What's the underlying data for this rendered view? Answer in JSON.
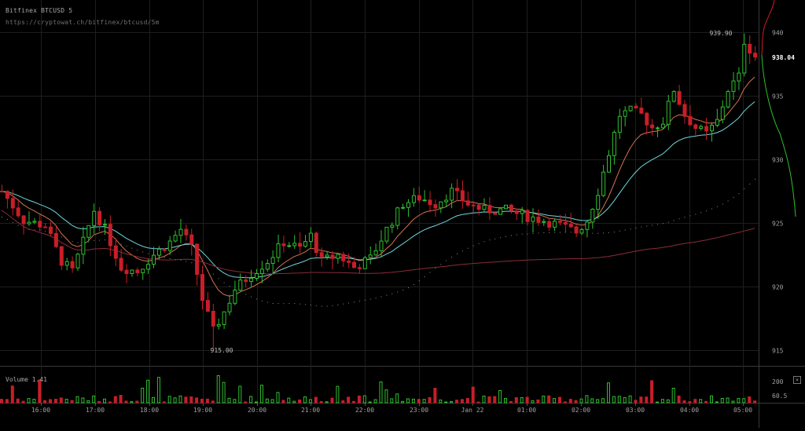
{
  "header": {
    "title": "Bitfinex BTCUSD 5",
    "url": "https://cryptowat.ch/bitfinex/btcusd/5m"
  },
  "colors": {
    "background": "#000000",
    "grid": "#1e1e1e",
    "up": "#2fbf2f",
    "down": "#c81e28",
    "ema_fast": "#d2734f",
    "ema_slow": "#6fd6dc",
    "sma_long": "#8a2d38",
    "dots": "#8a8a8a",
    "depth_bid": "#2fbf2f",
    "depth_ask": "#c81e28"
  },
  "chart_data": {
    "type": "candlestick",
    "x_ticks": [
      "16:00",
      "17:00",
      "18:00",
      "19:00",
      "20:00",
      "21:00",
      "22:00",
      "23:00",
      "Jan 22",
      "01:00",
      "02:00",
      "03:00",
      "04:00",
      "05:00"
    ],
    "y_ticks": [
      940,
      935,
      930,
      925,
      920,
      915
    ],
    "ylim": [
      914.5,
      942.5
    ],
    "last_price": "938.04",
    "high_label": "939.90",
    "low_label": "915.00",
    "volume": {
      "label": "Volume 1.41",
      "y_ticks": [
        "200",
        "60.5"
      ],
      "close_label": "×"
    },
    "ohlc_preview": [
      [
        927.8,
        928.1,
        924.8,
        925.2
      ],
      [
        925.2,
        926.3,
        924.0,
        924.6
      ],
      [
        924.6,
        925.5,
        923.9,
        925.0
      ],
      [
        915.9,
        917.4,
        915.0,
        916.8
      ],
      [
        934.8,
        935.7,
        932.9,
        933.5
      ],
      [
        937.1,
        939.9,
        936.5,
        939.3
      ],
      [
        939.3,
        939.9,
        937.4,
        938.04
      ]
    ]
  }
}
